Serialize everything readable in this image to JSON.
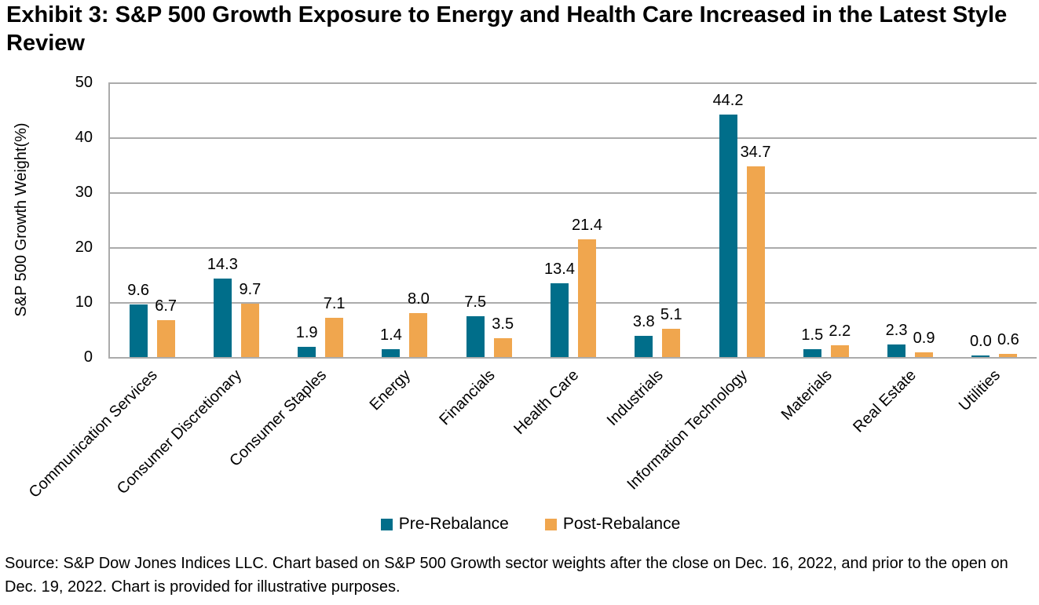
{
  "title": "Exhibit 3: S&P 500 Growth Exposure to Energy and Health Care Increased in the Latest Style Review",
  "source_note": "Source: S&P Dow Jones Indices LLC. Chart based on S&P 500 Growth sector weights after the close on Dec. 16, 2022, and prior to the open on Dec. 19, 2022. Chart is provided for illustrative purposes.",
  "colors": {
    "grid": "#ababab",
    "axis": "#ababab",
    "text": "#000000"
  },
  "chart_data": {
    "type": "bar",
    "title": "Exhibit 3: S&P 500 Growth Exposure to Energy and Health Care Increased in the Latest Style Review",
    "xlabel": "",
    "ylabel": "S&P 500 Growth Weight(%)",
    "ylim": [
      0,
      50
    ],
    "yticks": [
      0,
      10,
      20,
      30,
      40,
      50
    ],
    "grid": true,
    "legend_position": "bottom",
    "value_label_decimals": 1,
    "categories": [
      "Communication Services",
      "Consumer Discretionary",
      "Consumer Staples",
      "Energy",
      "Financials",
      "Health Care",
      "Industrials",
      "Information Technology",
      "Materials",
      "Real Estate",
      "Utilities"
    ],
    "series": [
      {
        "name": "Pre-Rebalance",
        "color": "#006e8a",
        "values": [
          9.6,
          14.3,
          1.9,
          1.4,
          7.5,
          13.4,
          3.8,
          44.2,
          1.5,
          2.3,
          0.0
        ]
      },
      {
        "name": "Post-Rebalance",
        "color": "#f0a64e",
        "values": [
          6.7,
          9.7,
          7.1,
          8.0,
          3.5,
          21.4,
          5.1,
          34.7,
          2.2,
          0.9,
          0.6
        ]
      }
    ]
  }
}
